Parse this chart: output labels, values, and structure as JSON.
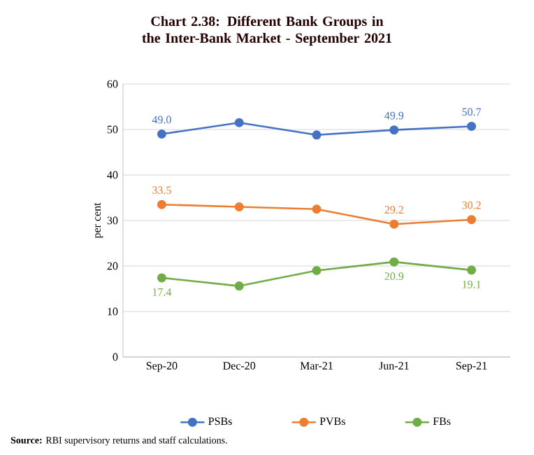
{
  "chart_data": {
    "type": "line",
    "title": "**Chart 2.38: Different Bank Groups in the Inter-Bank Market - September 2021**",
    "ylabel": "per cent",
    "categories": [
      "Sep-20",
      "Dec-20",
      "Mar-21",
      "Jun-21",
      "Sep-21"
    ],
    "series": [
      {
        "name": "PSBs",
        "color": "#4472c4",
        "values": [
          49.0,
          51.5,
          48.8,
          49.9,
          50.7
        ],
        "value_labels": [
          "49.0",
          null,
          null,
          "49.9",
          "50.7"
        ]
      },
      {
        "name": "PVBs",
        "color": "#ed7d31",
        "values": [
          33.5,
          33.0,
          32.5,
          29.2,
          30.2
        ],
        "value_labels": [
          "33.5",
          null,
          null,
          "29.2",
          "30.2"
        ]
      },
      {
        "name": "FBs",
        "color": "#70ad47",
        "values": [
          17.4,
          15.6,
          19.0,
          20.9,
          19.1
        ],
        "value_labels": [
          "17.4",
          null,
          null,
          "20.9",
          "19.1"
        ]
      }
    ],
    "ylim": [
      0,
      60
    ],
    "yticks": [
      0,
      10,
      20,
      30,
      40,
      50,
      60
    ],
    "grid": "y",
    "legend": "bottom",
    "marker": "circle",
    "line_style": "solid",
    "annotations": [
      "**Source:** RBI supervisory returns and staff calculations."
    ]
  }
}
